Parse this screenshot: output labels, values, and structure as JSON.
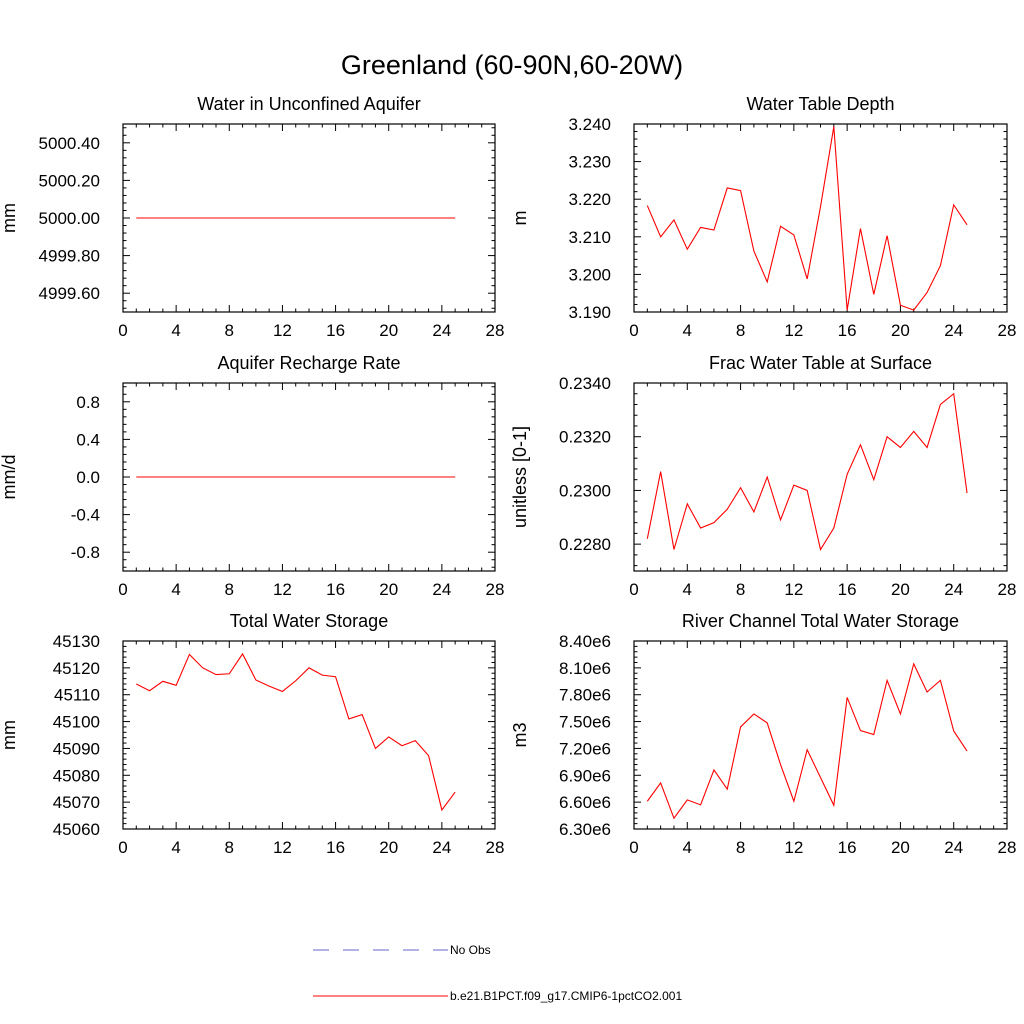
{
  "figure": {
    "title": "Greenland (60-90N,60-20W)"
  },
  "legend": {
    "entries": [
      {
        "label": "No Obs",
        "color": "#6666cc",
        "dashed": true
      },
      {
        "label": "b.e21.B1PCT.f09_g17.CMIP6-1pctCO2.001",
        "color": "#ff0000",
        "dashed": false
      }
    ]
  },
  "chart_data": [
    {
      "type": "line",
      "title": "Water in Unconfined Aquifer",
      "xlabel": "",
      "ylabel": "mm",
      "xlim": [
        0,
        28
      ],
      "ylim": [
        4999.5,
        5000.5
      ],
      "xticks": [
        0,
        4,
        8,
        12,
        16,
        20,
        24,
        28
      ],
      "yticks": [
        4999.6,
        4999.8,
        5000.0,
        5000.2,
        5000.4
      ],
      "ytick_labels": [
        "4999.60",
        "4999.80",
        "5000.00",
        "5000.20",
        "5000.40"
      ],
      "series": [
        {
          "color": "#ff0000",
          "x": [
            1,
            2,
            3,
            4,
            5,
            6,
            7,
            8,
            9,
            10,
            11,
            12,
            13,
            14,
            15,
            16,
            17,
            18,
            19,
            20,
            21,
            22,
            23,
            24,
            25
          ],
          "y": [
            5000,
            5000,
            5000,
            5000,
            5000,
            5000,
            5000,
            5000,
            5000,
            5000,
            5000,
            5000,
            5000,
            5000,
            5000,
            5000,
            5000,
            5000,
            5000,
            5000,
            5000,
            5000,
            5000,
            5000,
            5000
          ]
        }
      ]
    },
    {
      "type": "line",
      "title": "Water Table Depth",
      "xlabel": "",
      "ylabel": "m",
      "xlim": [
        0,
        28
      ],
      "ylim": [
        3.19,
        3.24
      ],
      "xticks": [
        0,
        4,
        8,
        12,
        16,
        20,
        24,
        28
      ],
      "yticks": [
        3.19,
        3.2,
        3.21,
        3.22,
        3.23,
        3.24
      ],
      "ytick_labels": [
        "3.190",
        "3.200",
        "3.210",
        "3.220",
        "3.230",
        "3.240"
      ],
      "series": [
        {
          "color": "#ff0000",
          "x": [
            1,
            2,
            3,
            4,
            5,
            6,
            7,
            8,
            9,
            10,
            11,
            12,
            13,
            14,
            15,
            16,
            17,
            18,
            19,
            20,
            21,
            22,
            23,
            24,
            25
          ],
          "y": [
            3.2183,
            3.21,
            3.2145,
            3.2067,
            3.2125,
            3.2118,
            3.223,
            3.2223,
            3.2062,
            3.198,
            3.2128,
            3.2105,
            3.1988,
            3.218,
            3.2393,
            3.1905,
            3.2122,
            3.1947,
            3.2103,
            3.1918,
            3.1905,
            3.1952,
            3.2023,
            3.2185,
            3.2132
          ]
        }
      ]
    },
    {
      "type": "line",
      "title": "Aquifer Recharge Rate",
      "xlabel": "",
      "ylabel": "mm/d",
      "xlim": [
        0,
        28
      ],
      "ylim": [
        -1.0,
        1.0
      ],
      "xticks": [
        0,
        4,
        8,
        12,
        16,
        20,
        24,
        28
      ],
      "yticks": [
        -0.8,
        -0.4,
        0.0,
        0.4,
        0.8
      ],
      "ytick_labels": [
        "-0.8",
        "-0.4",
        "0.0",
        "0.4",
        "0.8"
      ],
      "series": [
        {
          "color": "#ff0000",
          "x": [
            1,
            2,
            3,
            4,
            5,
            6,
            7,
            8,
            9,
            10,
            11,
            12,
            13,
            14,
            15,
            16,
            17,
            18,
            19,
            20,
            21,
            22,
            23,
            24,
            25
          ],
          "y": [
            0,
            0,
            0,
            0,
            0,
            0,
            0,
            0,
            0,
            0,
            0,
            0,
            0,
            0,
            0,
            0,
            0,
            0,
            0,
            0,
            0,
            0,
            0,
            0,
            0
          ]
        }
      ]
    },
    {
      "type": "line",
      "title": "Frac Water Table at Surface",
      "xlabel": "",
      "ylabel": "unitless [0-1]",
      "xlim": [
        0,
        28
      ],
      "ylim": [
        0.227,
        0.234
      ],
      "xticks": [
        0,
        4,
        8,
        12,
        16,
        20,
        24,
        28
      ],
      "yticks": [
        0.228,
        0.23,
        0.232,
        0.234
      ],
      "ytick_labels": [
        "0.2280",
        "0.2300",
        "0.2320",
        "0.2340"
      ],
      "series": [
        {
          "color": "#ff0000",
          "x": [
            1,
            2,
            3,
            4,
            5,
            6,
            7,
            8,
            9,
            10,
            11,
            12,
            13,
            14,
            15,
            16,
            17,
            18,
            19,
            20,
            21,
            22,
            23,
            24,
            25
          ],
          "y": [
            0.2282,
            0.2307,
            0.2278,
            0.2295,
            0.2286,
            0.2288,
            0.2293,
            0.2301,
            0.2292,
            0.2305,
            0.2289,
            0.2302,
            0.23,
            0.2278,
            0.2286,
            0.2306,
            0.2317,
            0.2304,
            0.232,
            0.2316,
            0.2322,
            0.2316,
            0.2332,
            0.2336,
            0.2299
          ]
        }
      ]
    },
    {
      "type": "line",
      "title": "Total Water Storage",
      "xlabel": "",
      "ylabel": "mm",
      "xlim": [
        0,
        28
      ],
      "ylim": [
        45060,
        45130
      ],
      "xticks": [
        0,
        4,
        8,
        12,
        16,
        20,
        24,
        28
      ],
      "yticks": [
        45060,
        45070,
        45080,
        45090,
        45100,
        45110,
        45120,
        45130
      ],
      "ytick_labels": [
        "45060",
        "45070",
        "45080",
        "45090",
        "45100",
        "45110",
        "45120",
        "45130"
      ],
      "series": [
        {
          "color": "#ff0000",
          "x": [
            1,
            2,
            3,
            4,
            5,
            6,
            7,
            8,
            9,
            10,
            11,
            12,
            13,
            14,
            15,
            16,
            17,
            18,
            19,
            20,
            21,
            22,
            23,
            24,
            25
          ],
          "y": [
            45114,
            45111.5,
            45115,
            45113.5,
            45125,
            45120,
            45117.5,
            45117.8,
            45125.2,
            45115.5,
            45113.2,
            45111.2,
            45115.2,
            45120,
            45117.3,
            45116.7,
            45101,
            45102.6,
            45090,
            45094.3,
            45091,
            45092.9,
            45087.3,
            45067.1,
            45073.7
          ]
        }
      ]
    },
    {
      "type": "line",
      "title": "River Channel Total Water Storage",
      "xlabel": "",
      "ylabel": "m3",
      "xlim": [
        0,
        28
      ],
      "ylim": [
        6300000,
        8400000
      ],
      "xticks": [
        0,
        4,
        8,
        12,
        16,
        20,
        24,
        28
      ],
      "yticks": [
        6300000,
        6600000,
        6900000,
        7200000,
        7500000,
        7800000,
        8100000,
        8400000
      ],
      "ytick_labels": [
        "6.30e6",
        "6.60e6",
        "6.90e6",
        "7.20e6",
        "7.50e6",
        "7.80e6",
        "8.10e6",
        "8.40e6"
      ],
      "series": [
        {
          "color": "#ff0000",
          "x": [
            1,
            2,
            3,
            4,
            5,
            6,
            7,
            8,
            9,
            10,
            11,
            12,
            13,
            14,
            15,
            16,
            17,
            18,
            19,
            20,
            21,
            22,
            23,
            24,
            25
          ],
          "y": [
            6610000,
            6815000,
            6420000,
            6625000,
            6570000,
            6960000,
            6745000,
            7440000,
            7585000,
            7485000,
            7020000,
            6610000,
            7185000,
            6875000,
            6565000,
            7770000,
            7400000,
            7355000,
            7960000,
            7585000,
            8145000,
            7830000,
            7960000,
            7395000,
            7170000
          ]
        }
      ]
    }
  ]
}
